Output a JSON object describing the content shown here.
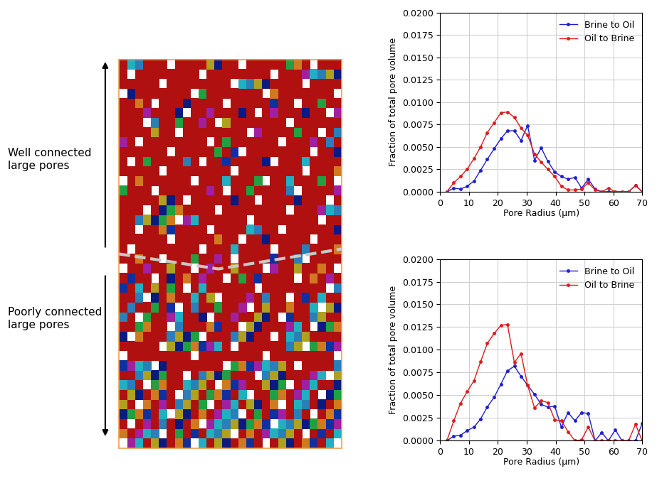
{
  "chart_data": [
    {
      "type": "line",
      "xlabel": "Pore Radius (μm)",
      "ylabel": "Fraction of total pore volume",
      "xlim": [
        0,
        70
      ],
      "xticks": [
        0,
        10,
        20,
        30,
        40,
        50,
        60,
        70
      ],
      "ylim": [
        0,
        0.02
      ],
      "yticks": [
        {
          "value": 0,
          "label": "0.0000"
        },
        {
          "value": 0.0025,
          "label": "0.0025"
        },
        {
          "value": 0.005,
          "label": "0.0050"
        },
        {
          "value": 0.0075,
          "label": "0.0075"
        },
        {
          "value": 0.01,
          "label": "0.0100"
        },
        {
          "value": 0.0125,
          "label": "0.0125"
        },
        {
          "value": 0.015,
          "label": "0.0150"
        },
        {
          "value": 0.0175,
          "label": "0.0175"
        },
        {
          "value": 0.02,
          "label": "0.0200"
        }
      ],
      "grid": true,
      "legend": "upper right",
      "marker": "o",
      "x": [
        2.3,
        4.7,
        7.0,
        9.3,
        11.7,
        14.0,
        16.3,
        18.7,
        21.0,
        23.3,
        25.7,
        28.0,
        30.3,
        32.7,
        35.0,
        37.3,
        39.7,
        42.0,
        44.3,
        46.7,
        49.0,
        51.3,
        53.7,
        56.0,
        58.3,
        60.7,
        63.0,
        65.3,
        67.7,
        70.0
      ],
      "series": [
        {
          "name": "Brine to Oil",
          "color": "#1f1fd0",
          "values": [
            0,
            0.0004,
            0.0003,
            0.0006,
            0.0012,
            0.0024,
            0.0036,
            0.0048,
            0.0059,
            0.0068,
            0.0068,
            0.0057,
            0.0074,
            0.0035,
            0.0049,
            0.0034,
            0.0022,
            0.0017,
            0.0014,
            0.0016,
            0.0004,
            0.0014,
            0.0003,
            0,
            0,
            0,
            0,
            0,
            0.0007,
            0
          ]
        },
        {
          "name": "Oil to Brine",
          "color": "#e01a1a",
          "values": [
            0,
            0.001,
            0.0017,
            0.0025,
            0.0037,
            0.005,
            0.0066,
            0.0077,
            0.0088,
            0.0089,
            0.0083,
            0.0071,
            0.0063,
            0.0042,
            0.0033,
            0.0025,
            0.0017,
            0.0006,
            0.0002,
            0.0002,
            0.0003,
            0.001,
            0.0002,
            0,
            0.0004,
            0,
            0,
            0,
            0.0007,
            0
          ]
        }
      ]
    },
    {
      "type": "line",
      "xlabel": "Pore Radius (μm)",
      "ylabel": "Fraction of total pore volume",
      "xlim": [
        0,
        70
      ],
      "xticks": [
        0,
        10,
        20,
        30,
        40,
        50,
        60,
        70
      ],
      "ylim": [
        0,
        0.02
      ],
      "yticks": [
        {
          "value": 0,
          "label": "0.0000"
        },
        {
          "value": 0.0025,
          "label": "0.0025"
        },
        {
          "value": 0.005,
          "label": "0.0050"
        },
        {
          "value": 0.0075,
          "label": "0.0075"
        },
        {
          "value": 0.01,
          "label": "0.0100"
        },
        {
          "value": 0.0125,
          "label": "0.0125"
        },
        {
          "value": 0.015,
          "label": "0.0150"
        },
        {
          "value": 0.0175,
          "label": "0.0175"
        },
        {
          "value": 0.02,
          "label": "0.0200"
        }
      ],
      "grid": true,
      "legend": "upper right",
      "marker": "o",
      "x": [
        2.3,
        4.7,
        7.0,
        9.3,
        11.7,
        14.0,
        16.3,
        18.7,
        21.0,
        23.3,
        25.7,
        28.0,
        30.3,
        32.7,
        35.0,
        37.3,
        39.7,
        42.0,
        44.3,
        46.7,
        49.0,
        51.3,
        53.7,
        56.0,
        58.3,
        60.7,
        63.0,
        65.3,
        67.7,
        70.0
      ],
      "series": [
        {
          "name": "Brine to Oil",
          "color": "#1f1fd0",
          "values": [
            0,
            0.0005,
            0.0006,
            0.0011,
            0.0015,
            0.0024,
            0.0037,
            0.0048,
            0.0062,
            0.0077,
            0.0082,
            0.0071,
            0.0061,
            0.0051,
            0.004,
            0.0037,
            0.0038,
            0.0015,
            0.0031,
            0.0022,
            0.0031,
            0.003,
            0,
            0.0009,
            0,
            0.0012,
            0,
            0,
            0,
            0.0019
          ]
        },
        {
          "name": "Oil to Brine",
          "color": "#e01a1a",
          "values": [
            0,
            0.0022,
            0.0041,
            0.0054,
            0.0066,
            0.0087,
            0.0107,
            0.0118,
            0.0127,
            0.0128,
            0.0086,
            0.0096,
            0.0061,
            0.0036,
            0.0044,
            0.0042,
            0.0023,
            0.0022,
            0.001,
            0,
            0.0001,
            0.0015,
            0,
            0,
            0,
            0,
            0,
            0,
            0.0018,
            0
          ]
        }
      ]
    }
  ],
  "diagram": {
    "labels": [
      "Well connected large pores",
      "Poorly connected large pores"
    ]
  }
}
